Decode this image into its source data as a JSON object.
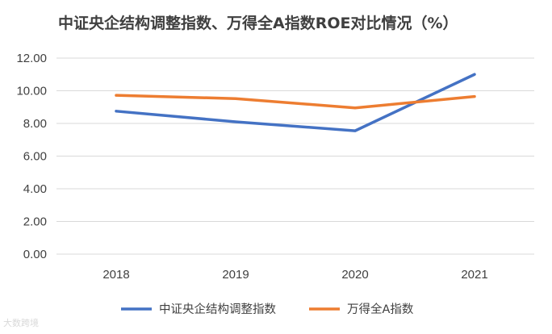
{
  "chart_data": {
    "type": "line",
    "title": "中证央企结构调整指数、万得全A指数ROE对比情况（%）",
    "categories": [
      "2018",
      "2019",
      "2020",
      "2021"
    ],
    "y_ticks": [
      "0.00",
      "2.00",
      "4.00",
      "6.00",
      "8.00",
      "10.00",
      "12.00"
    ],
    "ylim": [
      0,
      12
    ],
    "grid": true,
    "legend_position": "bottom",
    "series": [
      {
        "name": "中证央企结构调整指数",
        "color": "#4472C4",
        "values": [
          8.75,
          8.1,
          7.55,
          11.0
        ]
      },
      {
        "name": "万得全A指数",
        "color": "#ED7D31",
        "values": [
          9.72,
          9.52,
          8.95,
          9.65
        ]
      }
    ]
  },
  "watermark": "大数跨境"
}
